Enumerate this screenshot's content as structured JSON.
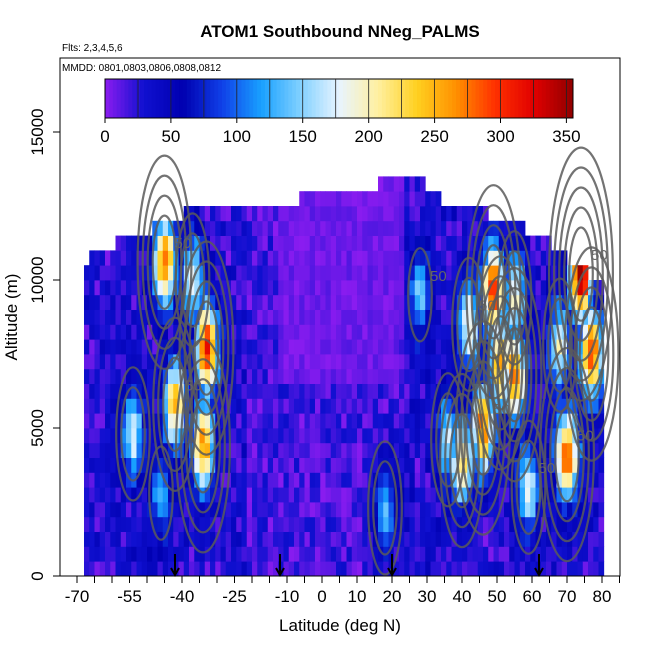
{
  "chart_data": {
    "type": "heatmap",
    "title": "ATOM1 Southbound NNeg_PALMS",
    "flights_label": "Flts: 2,3,4,5,6",
    "dates_label": "MMDD: 0801,0803,0806,0808,0812",
    "xlabel": "Latitude (deg N)",
    "ylabel": "Altitude (m)",
    "xlim": [
      -70,
      90
    ],
    "ylim": [
      0,
      17500
    ],
    "x_ticks": [
      "-70",
      "-55",
      "-40",
      "-25",
      "-10",
      "0",
      "10",
      "20",
      "30",
      "40",
      "50",
      "60",
      "70",
      "80"
    ],
    "y_ticks": [
      "0",
      "5000",
      "10000",
      "15000"
    ],
    "colorbar": {
      "ticks": [
        "0",
        "50",
        "100",
        "150",
        "200",
        "250",
        "300",
        "350"
      ],
      "range": [
        0,
        355
      ],
      "colors": [
        "#8b1cf0",
        "#1010d0",
        "#0000b0",
        "#1040e8",
        "#18a0ff",
        "#80d0ff",
        "#e8f4ff",
        "#fff0a0",
        "#ffd020",
        "#ff9000",
        "#ff3000",
        "#e00000",
        "#900000"
      ]
    },
    "contour_label": "50",
    "arrow_latitudes": [
      -42,
      -12,
      20,
      62
    ],
    "altitude_top_profile": [
      {
        "lat": -67,
        "alt": 10500
      },
      {
        "lat": -60,
        "alt": 11000
      },
      {
        "lat": -50,
        "alt": 11500
      },
      {
        "lat": -40,
        "alt": 12000
      },
      {
        "lat": -20,
        "alt": 12300
      },
      {
        "lat": 0,
        "alt": 12600
      },
      {
        "lat": 15,
        "alt": 13000
      },
      {
        "lat": 25,
        "alt": 13300
      },
      {
        "lat": 35,
        "alt": 12400
      },
      {
        "lat": 50,
        "alt": 11900
      },
      {
        "lat": 62,
        "alt": 11200
      },
      {
        "lat": 72,
        "alt": 10300
      },
      {
        "lat": 80,
        "alt": 9700
      }
    ],
    "hotspots": [
      {
        "lat": -45,
        "alt": 10600,
        "value": 250
      },
      {
        "lat": -37,
        "alt": 10000,
        "value": 160
      },
      {
        "lat": -33,
        "alt": 7700,
        "value": 290
      },
      {
        "lat": -42,
        "alt": 5800,
        "value": 220
      },
      {
        "lat": -34,
        "alt": 4400,
        "value": 240
      },
      {
        "lat": -54,
        "alt": 4800,
        "value": 140
      },
      {
        "lat": 42,
        "alt": 8500,
        "value": 170
      },
      {
        "lat": 49,
        "alt": 9600,
        "value": 290
      },
      {
        "lat": 55,
        "alt": 9400,
        "value": 170
      },
      {
        "lat": 46,
        "alt": 5000,
        "value": 250
      },
      {
        "lat": 51,
        "alt": 7200,
        "value": 240
      },
      {
        "lat": 55,
        "alt": 6800,
        "value": 250
      },
      {
        "lat": 70,
        "alt": 4100,
        "value": 260
      },
      {
        "lat": 77,
        "alt": 7500,
        "value": 270
      },
      {
        "lat": 68,
        "alt": 7800,
        "value": 160
      },
      {
        "lat": 59,
        "alt": 3000,
        "value": 150
      },
      {
        "lat": 36,
        "alt": 4600,
        "value": 140
      },
      {
        "lat": 40,
        "alt": 3900,
        "value": 200
      },
      {
        "lat": 74,
        "alt": 10200,
        "value": 330
      },
      {
        "lat": 18,
        "alt": 2300,
        "value": 120
      },
      {
        "lat": -46,
        "alt": 2800,
        "value": 90
      },
      {
        "lat": 28,
        "alt": 9500,
        "value": 110
      }
    ]
  }
}
